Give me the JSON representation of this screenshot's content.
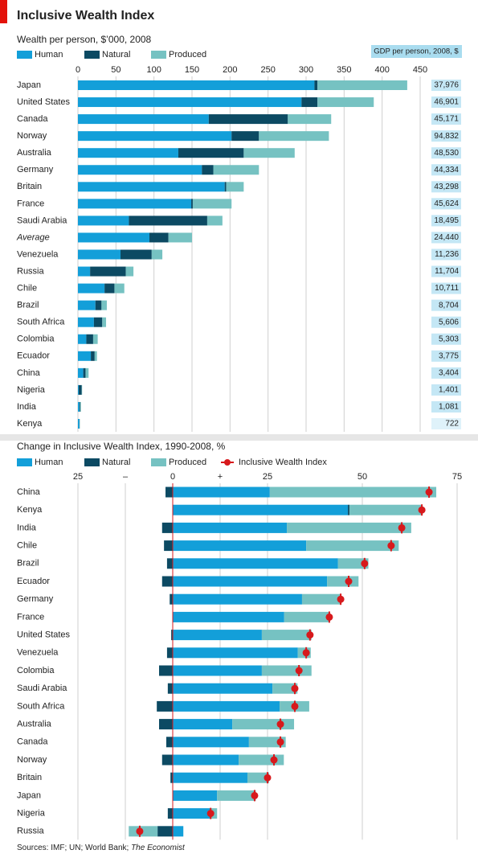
{
  "title": "Inclusive Wealth Index",
  "source": {
    "text": "Sources: IMF; UN; World Bank; ",
    "italic": "The Economist"
  },
  "chart_data": [
    {
      "type": "bar",
      "title": "Wealth per person, $’000, 2008",
      "categories": [
        "Japan",
        "United States",
        "Canada",
        "Norway",
        "Australia",
        "Germany",
        "Britain",
        "France",
        "Saudi Arabia",
        "Average",
        "Venezuela",
        "Russia",
        "Chile",
        "Brazil",
        "South Africa",
        "Colombia",
        "Ecuador",
        "China",
        "Nigeria",
        "India",
        "Kenya"
      ],
      "series": [
        {
          "name": "Human",
          "color": "#139fd9",
          "values": [
            311,
            294,
            172,
            202,
            132,
            163,
            193,
            149,
            67,
            94,
            56,
            16,
            35,
            23,
            21,
            11,
            17,
            7,
            1,
            2,
            2
          ]
        },
        {
          "name": "Natural",
          "color": "#0c4a63",
          "values": [
            4,
            21,
            104,
            36,
            86,
            15,
            2,
            2,
            103,
            25,
            41,
            47,
            13,
            8,
            11,
            9,
            5,
            3,
            4,
            1,
            0.3
          ]
        },
        {
          "name": "Produced",
          "color": "#76c2c2",
          "values": [
            118,
            74,
            57,
            92,
            67,
            60,
            23,
            51,
            20,
            31,
            14,
            10,
            13,
            7,
            5,
            6,
            3,
            4,
            0.5,
            1,
            0.3
          ]
        }
      ],
      "xlim": [
        0,
        450
      ],
      "xticks": [
        0,
        50,
        100,
        150,
        200,
        250,
        300,
        350,
        400,
        450
      ],
      "grid": true,
      "gdp": {
        "title": "GDP per person, 2008, $",
        "values": [
          37976,
          46901,
          45171,
          94832,
          48530,
          44334,
          43298,
          45624,
          18495,
          24440,
          11236,
          11704,
          10711,
          8704,
          5606,
          5303,
          3775,
          3404,
          1401,
          1081,
          722
        ],
        "value_labels": [
          "37,976",
          "46,901",
          "45,171",
          "94,832",
          "48,530",
          "44,334",
          "43,298",
          "45,624",
          "18,495",
          "24,440",
          "11,236",
          "11,704",
          "10,711",
          "8,704",
          "5,606",
          "5,303",
          "3,775",
          "3,404",
          "1,401",
          "1,081",
          "722"
        ]
      }
    },
    {
      "type": "bar",
      "title": "Change in Inclusive Wealth Index, 1990-2008, %",
      "categories": [
        "China",
        "Kenya",
        "India",
        "Chile",
        "Brazil",
        "Ecuador",
        "Germany",
        "France",
        "United States",
        "Venezuela",
        "Colombia",
        "Saudi Arabia",
        "South Africa",
        "Australia",
        "Canada",
        "Norway",
        "Britain",
        "Japan",
        "Nigeria",
        "Russia"
      ],
      "series": [
        {
          "name": "Human",
          "color": "#139fd9",
          "values": [
            25.6,
            46.2,
            30.1,
            35.2,
            43.6,
            40.7,
            34.1,
            29.4,
            23.5,
            33,
            23.5,
            26.3,
            28.2,
            15.7,
            20.1,
            17.4,
            19.7,
            11.7,
            10,
            2.8
          ]
        },
        {
          "name": "Natural",
          "color": "#0c4a63",
          "values": [
            -1.9,
            0.4,
            -2.8,
            -2.3,
            -1.5,
            -2.8,
            -0.8,
            0,
            -0.4,
            -1.5,
            -3.6,
            -1.3,
            -4.2,
            -3.6,
            -1.7,
            -2.8,
            -0.6,
            0,
            -1.3,
            -4
          ]
        },
        {
          "name": "Produced",
          "color": "#76c2c2",
          "values": [
            43.9,
            19,
            32.8,
            24.4,
            8,
            8.3,
            10.2,
            11.9,
            13.1,
            3.4,
            13.1,
            6.6,
            7.8,
            16.3,
            9.7,
            11.9,
            5.7,
            10.2,
            1.7,
            -7.6
          ]
        }
      ],
      "dots": {
        "name": "Inclusive Wealth Index",
        "color": "#d7191c",
        "values": [
          67.6,
          65.7,
          60.4,
          57.6,
          50.6,
          46.4,
          44.3,
          41.3,
          36.2,
          35.2,
          33.3,
          32.2,
          32.2,
          28.4,
          28.4,
          26.7,
          25,
          21.6,
          10,
          -8.7
        ]
      },
      "xlim": [
        -25,
        75
      ],
      "xticks": [
        {
          "value": -25,
          "label": "25"
        },
        {
          "value": -12.5,
          "label": "–"
        },
        0,
        {
          "value": 12.5,
          "label": "+"
        },
        25,
        50,
        75
      ],
      "grid": true
    }
  ]
}
